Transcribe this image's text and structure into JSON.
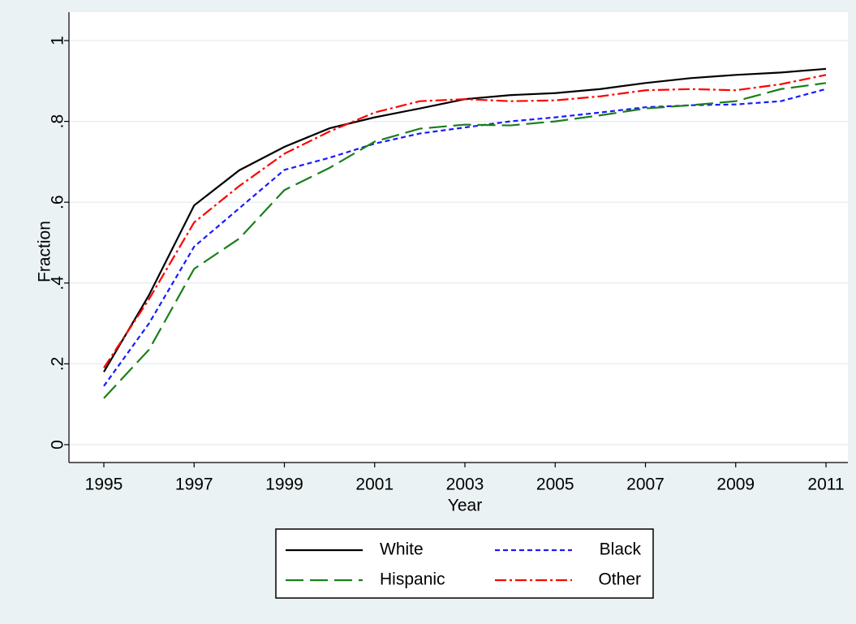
{
  "chart_data": {
    "type": "line",
    "x_label": "Year",
    "y_label": "Fraction",
    "x": [
      1995,
      1996,
      1997,
      1998,
      1999,
      2000,
      2001,
      2002,
      2003,
      2004,
      2005,
      2006,
      2007,
      2008,
      2009,
      2010,
      2011
    ],
    "series": [
      {
        "name": "White",
        "color": "#000000",
        "dash": "none",
        "values": [
          0.18,
          0.37,
          0.592,
          0.679,
          0.737,
          0.783,
          0.81,
          0.832,
          0.855,
          0.865,
          0.87,
          0.88,
          0.895,
          0.907,
          0.915,
          0.921,
          0.93
        ]
      },
      {
        "name": "Black",
        "color": "#1a1aff",
        "dash": "6 4",
        "values": [
          0.145,
          0.3,
          0.49,
          0.585,
          0.68,
          0.71,
          0.745,
          0.77,
          0.785,
          0.8,
          0.81,
          0.822,
          0.835,
          0.84,
          0.842,
          0.85,
          0.88
        ]
      },
      {
        "name": "Hispanic",
        "color": "#1a7f1a",
        "dash": "22 8",
        "values": [
          0.115,
          0.235,
          0.435,
          0.51,
          0.63,
          0.685,
          0.75,
          0.782,
          0.792,
          0.79,
          0.8,
          0.815,
          0.832,
          0.84,
          0.85,
          0.88,
          0.895
        ]
      },
      {
        "name": "Other",
        "color": "#ff0000",
        "dash": "14 4 3 4",
        "values": [
          0.19,
          0.36,
          0.55,
          0.64,
          0.72,
          0.775,
          0.822,
          0.85,
          0.855,
          0.85,
          0.852,
          0.862,
          0.877,
          0.88,
          0.877,
          0.892,
          0.915
        ]
      }
    ],
    "xlim": [
      1995,
      2011
    ],
    "xticks": [
      1995,
      1997,
      1999,
      2001,
      2003,
      2005,
      2007,
      2009,
      2011
    ],
    "ylim": [
      0,
      1
    ],
    "yticks": [
      0,
      {
        "value": 0.2,
        "label": ".2"
      },
      {
        "value": 0.4,
        "label": ".4"
      },
      {
        "value": 0.6,
        "label": ".6"
      },
      {
        "value": 0.8,
        "label": ".8"
      },
      1
    ],
    "grid": true,
    "legend_position": "bottom"
  }
}
